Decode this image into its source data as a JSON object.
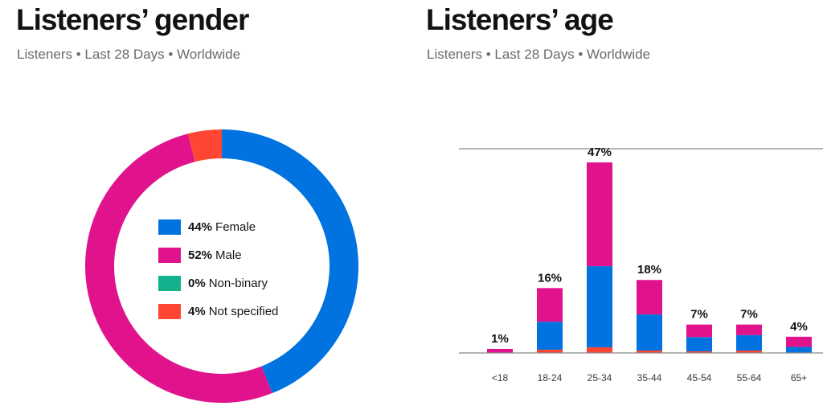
{
  "gender_panel": {
    "title": "Listeners’ gender",
    "subtitle": "Listeners • Last 28 Days • Worldwide"
  },
  "age_panel": {
    "title": "Listeners’ age",
    "subtitle": "Listeners • Last 28 Days • Worldwide"
  },
  "colors": {
    "female": "#0073e0",
    "male": "#e0138c",
    "non_binary": "#13b28c",
    "not_specified": "#ff4632"
  },
  "chart_data": [
    {
      "type": "pie",
      "variant": "donut",
      "title": "Listeners’ gender",
      "subtitle": "Listeners • Last 28 Days • Worldwide",
      "legend_placement": "center",
      "slices": [
        {
          "key": "female",
          "label": "Female",
          "value": 44,
          "display": "44%",
          "color": "#0073e0"
        },
        {
          "key": "male",
          "label": "Male",
          "value": 52,
          "display": "52%",
          "color": "#e0138c"
        },
        {
          "key": "non_binary",
          "label": "Non-binary",
          "value": 0,
          "display": "0%",
          "color": "#13b28c"
        },
        {
          "key": "not_specified",
          "label": "Not specified",
          "value": 4,
          "display": "4%",
          "color": "#ff4632"
        }
      ]
    },
    {
      "type": "bar",
      "stacked": true,
      "title": "Listeners’ age",
      "subtitle": "Listeners • Last 28 Days • Worldwide",
      "xlabel": "",
      "ylabel": "",
      "ylim": [
        0,
        50
      ],
      "grid": false,
      "categories": [
        "<18",
        "18-24",
        "25-34",
        "35-44",
        "45-54",
        "55-64",
        "65+"
      ],
      "totals": [
        1,
        16,
        47,
        18,
        7,
        7,
        4
      ],
      "total_labels": [
        "1%",
        "16%",
        "47%",
        "18%",
        "7%",
        "7%",
        "4%"
      ],
      "series": [
        {
          "name": "Not specified",
          "color": "#ff4632",
          "values": [
            0,
            0.8,
            1.4,
            0.6,
            0.4,
            0.6,
            0
          ]
        },
        {
          "name": "Female",
          "color": "#0073e0",
          "values": [
            0,
            6.9,
            20.0,
            8.9,
            3.5,
            3.8,
            1.5
          ]
        },
        {
          "name": "Male",
          "color": "#e0138c",
          "values": [
            1,
            8.3,
            25.6,
            8.5,
            3.1,
            2.6,
            2.5
          ]
        }
      ]
    }
  ]
}
